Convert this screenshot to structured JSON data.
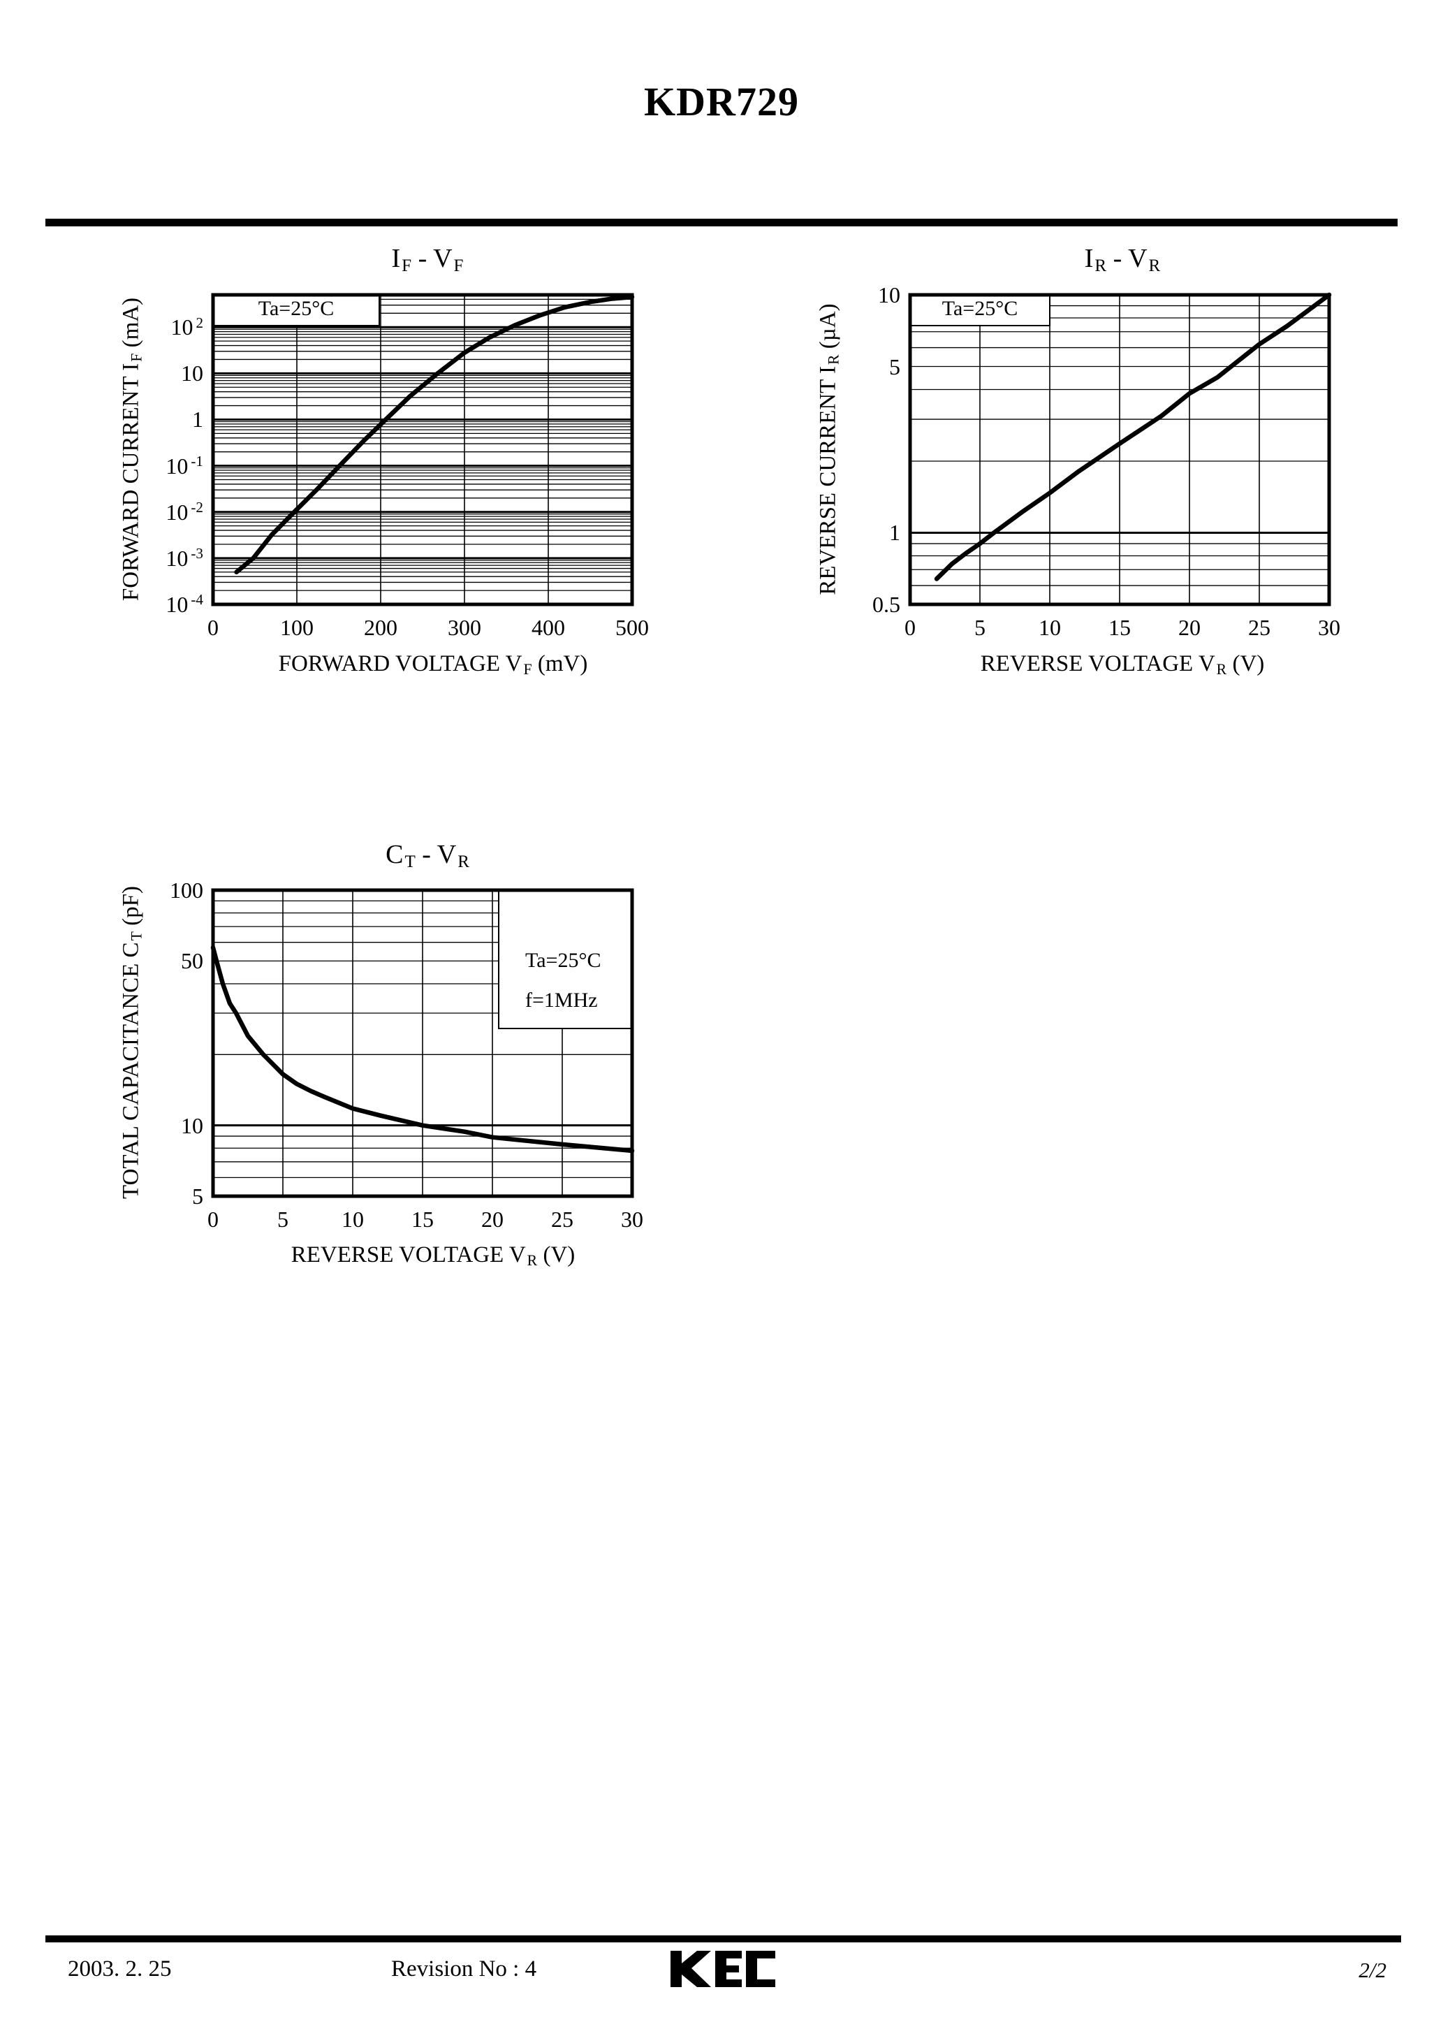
{
  "page": {
    "title": "KDR729",
    "footer": {
      "date": "2003. 2. 25",
      "revision": "Revision No : 4",
      "logo": "KEC",
      "page_number": "2/2"
    }
  },
  "chart_data": [
    {
      "id": "if-vf",
      "type": "line",
      "title": "IF - VF",
      "title_parts": [
        [
          "I"
        ],
        [
          "F",
          "sub"
        ],
        [
          "   -   "
        ],
        [
          "V"
        ],
        [
          "F",
          "sub"
        ]
      ],
      "annotation": [
        "Ta=25°C"
      ],
      "x_axis": {
        "label": "FORWARD VOLTAGE VF (mV)",
        "label_parts": [
          [
            "FORWARD VOLTAGE V"
          ],
          [
            "F",
            "sub"
          ],
          [
            "  (mV)"
          ]
        ],
        "min": 0,
        "max": 500,
        "ticks": [
          0,
          100,
          200,
          300,
          400,
          500
        ],
        "gridlines": [
          100,
          200,
          300,
          400
        ],
        "unit": "mV"
      },
      "y_axis": {
        "label": "FORWARD CURRENT IF (mA)",
        "label_parts": [
          [
            "FORWARD CURRENT I"
          ],
          [
            "F",
            "sub"
          ],
          [
            "  (mA)"
          ]
        ],
        "scale": "log",
        "min": 0.0001,
        "max": 500,
        "unit": "mA",
        "tick_labels": [
          {
            "value": 100,
            "parts": [
              [
                "10"
              ],
              [
                "2",
                "sup"
              ]
            ]
          },
          {
            "value": 10,
            "parts": [
              [
                "10"
              ]
            ]
          },
          {
            "value": 1,
            "parts": [
              [
                "1"
              ]
            ]
          },
          {
            "value": 0.1,
            "parts": [
              [
                "10"
              ],
              [
                "-1",
                "sup"
              ]
            ]
          },
          {
            "value": 0.01,
            "parts": [
              [
                "10"
              ],
              [
                "-2",
                "sup"
              ]
            ]
          },
          {
            "value": 0.001,
            "parts": [
              [
                "10"
              ],
              [
                "-3",
                "sup"
              ]
            ]
          },
          {
            "value": 0.0001,
            "parts": [
              [
                "10"
              ],
              [
                "-4",
                "sup"
              ]
            ]
          }
        ]
      },
      "series": [
        {
          "name": "IF",
          "points": [
            [
              28,
              0.0005
            ],
            [
              48,
              0.001
            ],
            [
              70,
              0.0032
            ],
            [
              97,
              0.01
            ],
            [
              125,
              0.032
            ],
            [
              151,
              0.1
            ],
            [
              180,
              0.35
            ],
            [
              206,
              1
            ],
            [
              235,
              3.2
            ],
            [
              268,
              10
            ],
            [
              300,
              28
            ],
            [
              330,
              60
            ],
            [
              360,
              110
            ],
            [
              390,
              180
            ],
            [
              420,
              270
            ],
            [
              450,
              350
            ],
            [
              475,
              410
            ],
            [
              500,
              450
            ]
          ]
        }
      ]
    },
    {
      "id": "ir-vr",
      "type": "line",
      "title": "IR - VR",
      "title_parts": [
        [
          "I"
        ],
        [
          "R",
          "sub"
        ],
        [
          "   -   "
        ],
        [
          "V"
        ],
        [
          "R",
          "sub"
        ]
      ],
      "annotation": [
        "Ta=25°C"
      ],
      "x_axis": {
        "label": "REVERSE VOLTAGE VR (V)",
        "label_parts": [
          [
            "REVERSE VOLTAGE V"
          ],
          [
            "R",
            "sub"
          ],
          [
            "  (V)"
          ]
        ],
        "min": 0,
        "max": 30,
        "ticks": [
          0,
          5,
          10,
          15,
          20,
          25,
          30
        ],
        "gridlines": [
          5,
          10,
          15,
          20,
          25
        ],
        "unit": "V"
      },
      "y_axis": {
        "label": "REVERSE CURRENT IR (µA)",
        "label_parts": [
          [
            "REVERSE CURRENT I"
          ],
          [
            "R",
            "sub"
          ],
          [
            "  (µA)"
          ]
        ],
        "scale": "log",
        "min": 0.5,
        "max": 10,
        "unit": "µA",
        "tick_labels": [
          {
            "value": 10,
            "parts": [
              [
                "10"
              ]
            ]
          },
          {
            "value": 5,
            "parts": [
              [
                "5"
              ]
            ]
          },
          {
            "value": 1,
            "parts": [
              [
                "1"
              ]
            ]
          },
          {
            "value": 0.5,
            "parts": [
              [
                "0.5"
              ]
            ]
          }
        ]
      },
      "series": [
        {
          "name": "IR",
          "points": [
            [
              1.9,
              0.64
            ],
            [
              3,
              0.74
            ],
            [
              4,
              0.82
            ],
            [
              5,
              0.9
            ],
            [
              6,
              1.0
            ],
            [
              8,
              1.22
            ],
            [
              10,
              1.47
            ],
            [
              12,
              1.8
            ],
            [
              15,
              2.37
            ],
            [
              18,
              3.1
            ],
            [
              20,
              3.85
            ],
            [
              22,
              4.5
            ],
            [
              25,
              6.2
            ],
            [
              27,
              7.4
            ],
            [
              30,
              10
            ]
          ]
        }
      ]
    },
    {
      "id": "ct-vr",
      "type": "line",
      "title": "CT - VR",
      "title_parts": [
        [
          "C"
        ],
        [
          "T",
          "sub"
        ],
        [
          "   -   "
        ],
        [
          "V"
        ],
        [
          "R",
          "sub"
        ]
      ],
      "annotation": [
        "Ta=25°C",
        "f=1MHz"
      ],
      "x_axis": {
        "label": "REVERSE VOLTAGE VR (V)",
        "label_parts": [
          [
            "REVERSE VOLTAGE V"
          ],
          [
            "R",
            "sub"
          ],
          [
            "  (V)"
          ]
        ],
        "min": 0,
        "max": 30,
        "ticks": [
          0,
          5,
          10,
          15,
          20,
          25,
          30
        ],
        "gridlines": [
          5,
          10,
          15,
          20,
          25
        ],
        "unit": "V"
      },
      "y_axis": {
        "label": "TOTAL CAPACITANCE CT (pF)",
        "label_parts": [
          [
            "TOTAL CAPACITANCE C"
          ],
          [
            "T",
            "sub"
          ],
          [
            "  (pF)"
          ]
        ],
        "scale": "log",
        "min": 5,
        "max": 100,
        "unit": "pF",
        "tick_labels": [
          {
            "value": 100,
            "parts": [
              [
                "100"
              ]
            ]
          },
          {
            "value": 50,
            "parts": [
              [
                "50"
              ]
            ]
          },
          {
            "value": 10,
            "parts": [
              [
                "10"
              ]
            ]
          },
          {
            "value": 5,
            "parts": [
              [
                "5"
              ]
            ]
          }
        ]
      },
      "series": [
        {
          "name": "CT",
          "points": [
            [
              0,
              57
            ],
            [
              0.25,
              50
            ],
            [
              0.7,
              40
            ],
            [
              1.2,
              33
            ],
            [
              1.65,
              30
            ],
            [
              2.5,
              24
            ],
            [
              3.6,
              20
            ],
            [
              5,
              16.5
            ],
            [
              6,
              15
            ],
            [
              7,
              14
            ],
            [
              8,
              13.2
            ],
            [
              10,
              11.8
            ],
            [
              12,
              11
            ],
            [
              15,
              10
            ],
            [
              18,
              9.4
            ],
            [
              20,
              8.9
            ],
            [
              25,
              8.3
            ],
            [
              30,
              7.8
            ]
          ]
        }
      ]
    }
  ]
}
